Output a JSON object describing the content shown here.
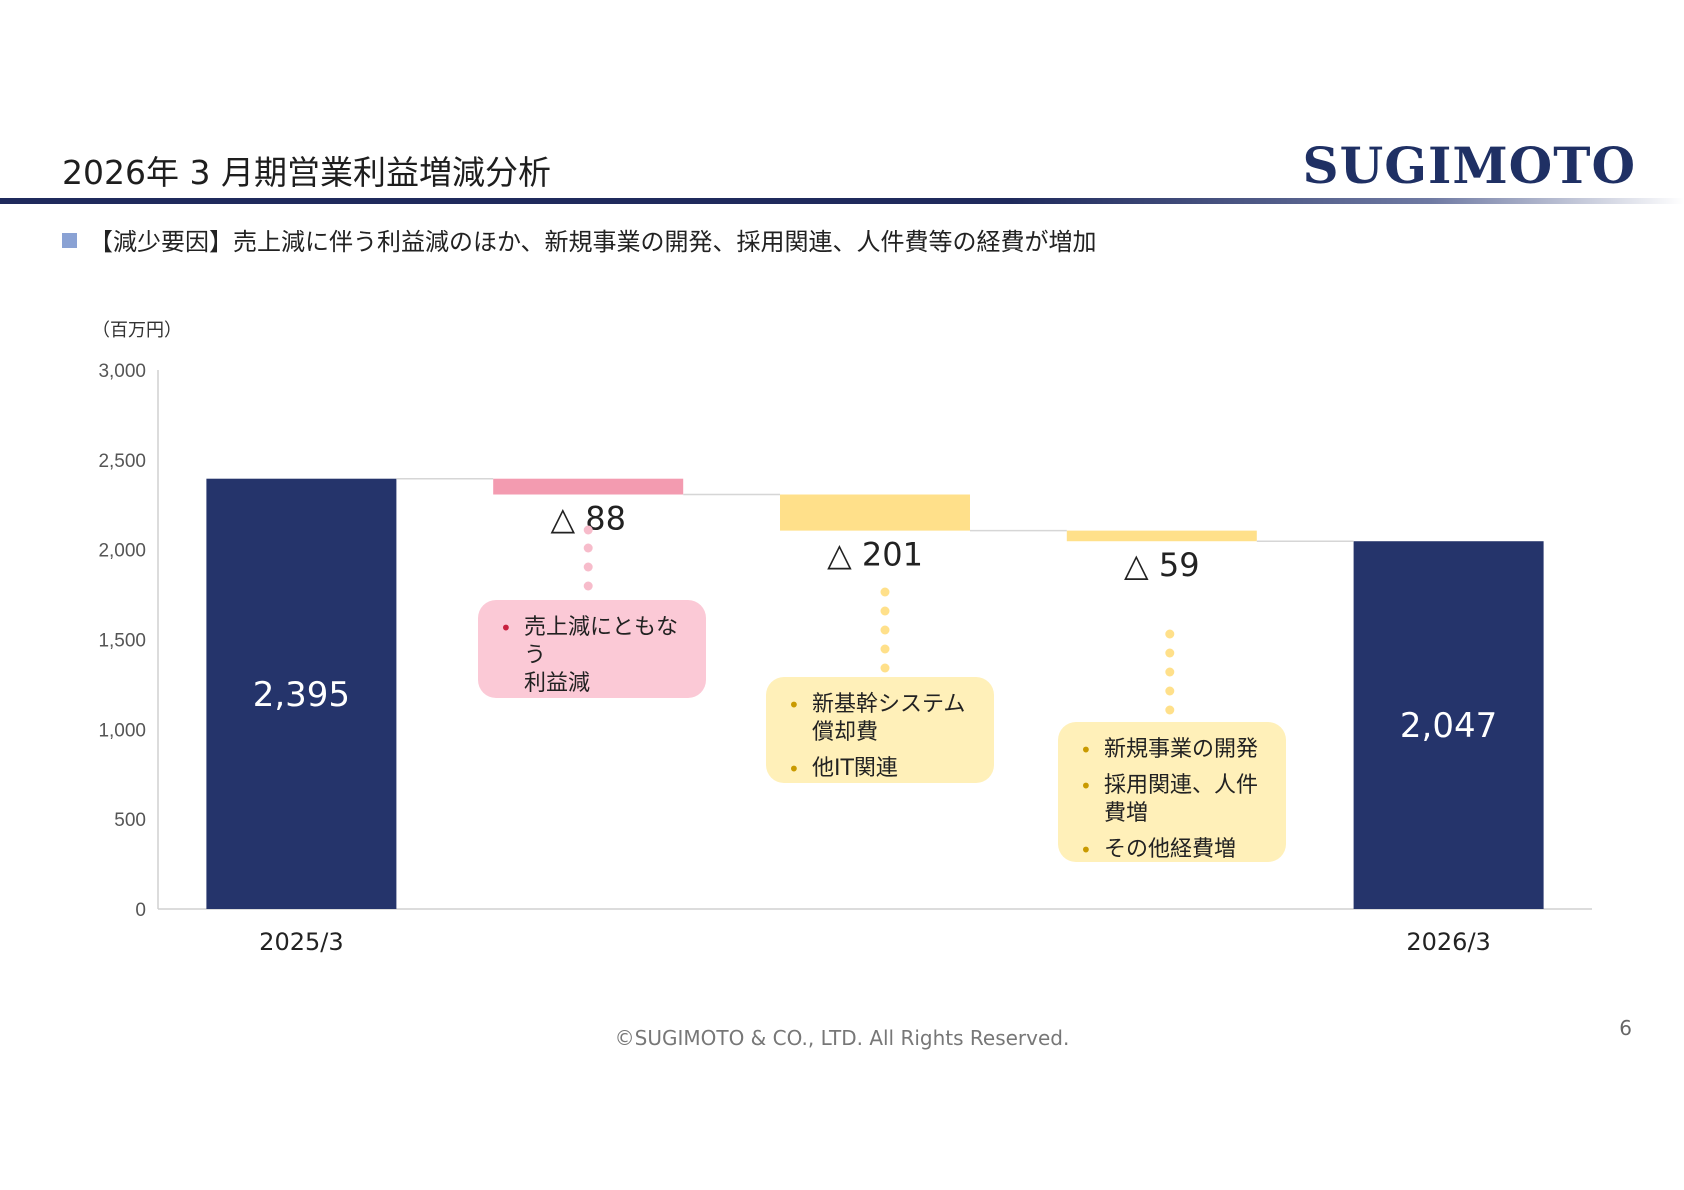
{
  "title": "2026年 3 月期営業利益増減分析",
  "logo": "SUGIMOTO",
  "bullet": "【減少要因】売上減に伴う利益減のほか、新規事業の開発、採用関連、人件費等の経費が増加",
  "unit_label": "（百万円）",
  "colors": {
    "navy": "#25346b",
    "pink": "#f39bb0",
    "yellow": "#ffe08a",
    "pink_box": "#fbc9d6",
    "yellow_box": "#fff0b9"
  },
  "chart_data": {
    "type": "bar",
    "subtype": "waterfall",
    "ylim": [
      0,
      3000
    ],
    "yticks": [
      "0",
      "500",
      "1,000",
      "1,500",
      "2,000",
      "2,500",
      "3,000"
    ],
    "grid": false,
    "bars": [
      {
        "category": "2025/3",
        "kind": "total",
        "value": 2395,
        "label": "2,395"
      },
      {
        "category": "",
        "kind": "decrease",
        "value": -88,
        "label": "△ 88"
      },
      {
        "category": "",
        "kind": "decrease",
        "value": -201,
        "label": "△ 201"
      },
      {
        "category": "",
        "kind": "decrease",
        "value": -59,
        "label": "△ 59"
      },
      {
        "category": "2026/3",
        "kind": "total",
        "value": 2047,
        "label": "2,047"
      }
    ]
  },
  "callouts": [
    {
      "items": [
        "売上減にともなう\n利益減"
      ]
    },
    {
      "items": [
        "新基幹システム\n償却費",
        "他IT関連"
      ]
    },
    {
      "items": [
        "新規事業の開発",
        "採用関連、人件\n費増",
        "その他経費増"
      ]
    }
  ],
  "footer": "©SUGIMOTO & CO., LTD. All Rights Reserved.",
  "page_number": "6"
}
